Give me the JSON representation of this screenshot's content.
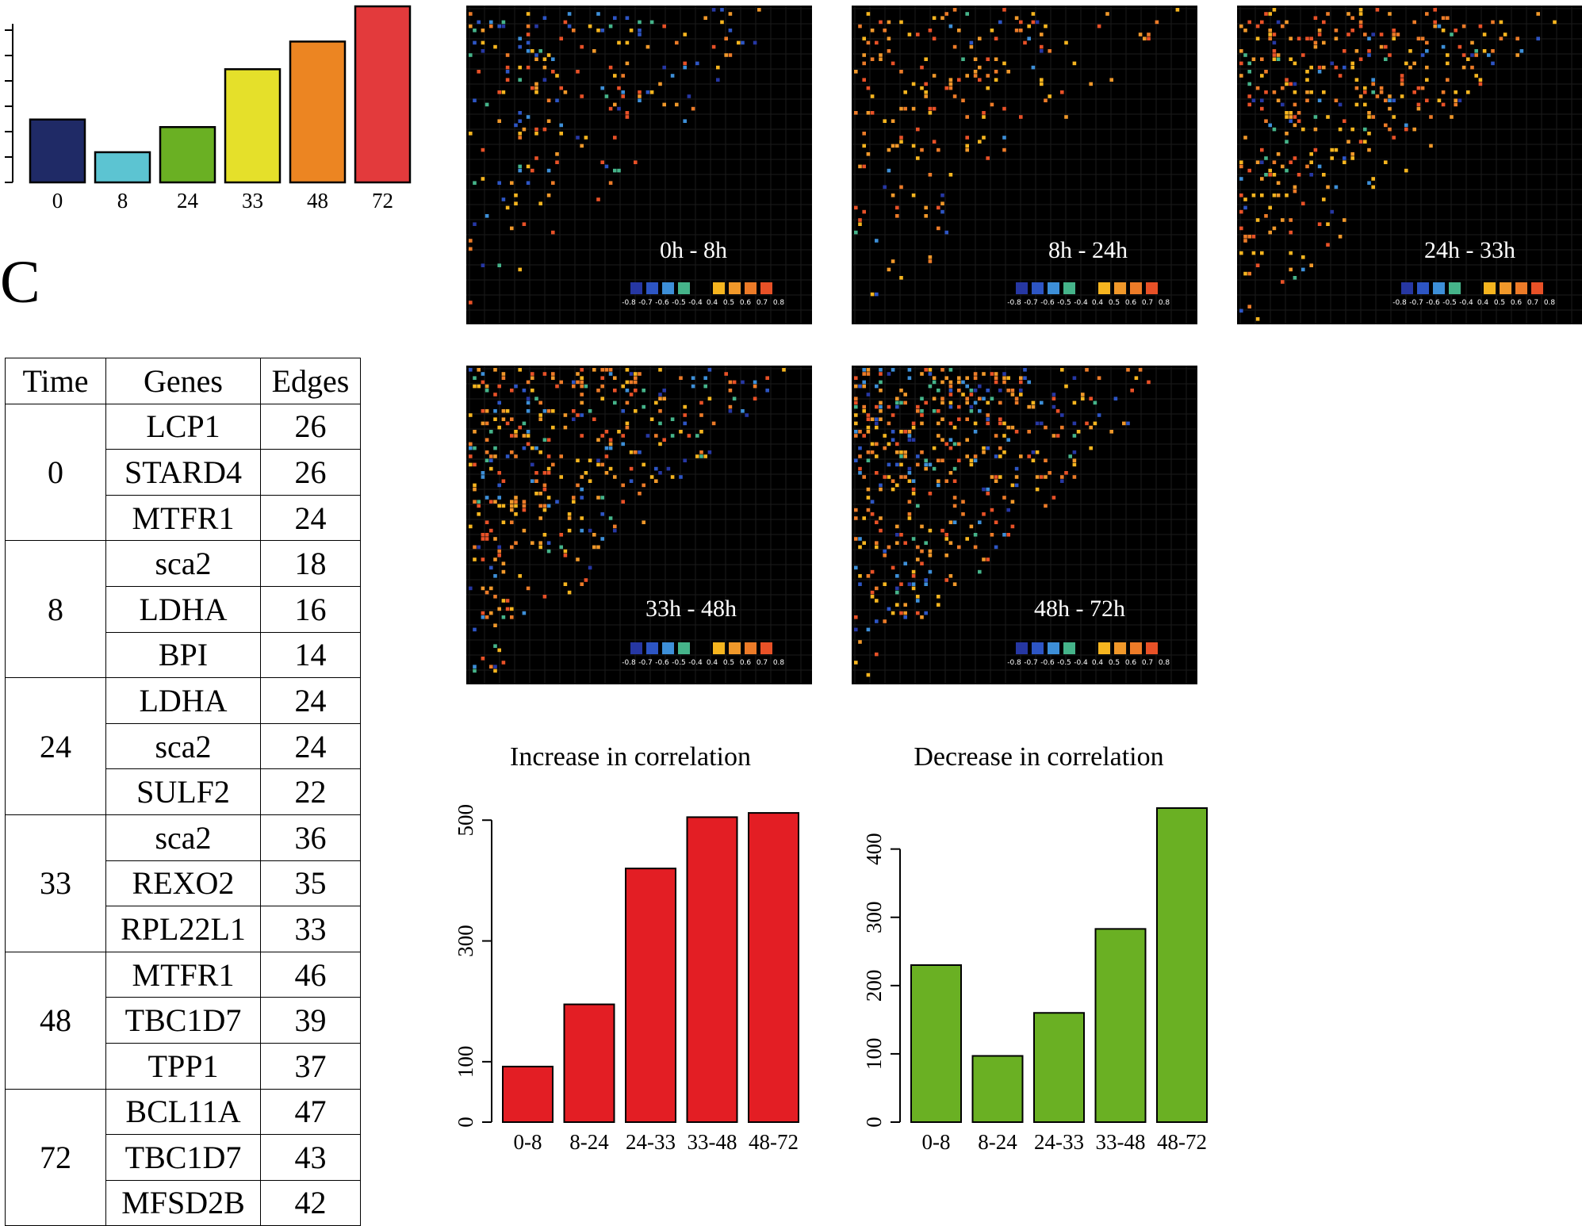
{
  "top_chart": {
    "type": "bar",
    "categories": [
      "0",
      "8",
      "24",
      "33",
      "48",
      "72"
    ],
    "values": [
      2.5,
      1.2,
      2.2,
      4.5,
      5.6,
      7.0
    ],
    "colors": [
      "#1f2a66",
      "#5cc4d2",
      "#6ab023",
      "#e5e02a",
      "#ec8522",
      "#e33a3c"
    ],
    "ylim": [
      0,
      7
    ]
  },
  "panel_letter": "C",
  "table": {
    "headers": [
      "Time",
      "Genes",
      "Edges"
    ],
    "groups": [
      {
        "time": "0",
        "rows": [
          {
            "gene": "LCP1",
            "edges": "26"
          },
          {
            "gene": "STARD4",
            "edges": "26"
          },
          {
            "gene": "MTFR1",
            "edges": "24"
          }
        ]
      },
      {
        "time": "8",
        "rows": [
          {
            "gene": "sca2",
            "edges": "18"
          },
          {
            "gene": "LDHA",
            "edges": "16"
          },
          {
            "gene": "BPI",
            "edges": "14"
          }
        ]
      },
      {
        "time": "24",
        "rows": [
          {
            "gene": "LDHA",
            "edges": "24"
          },
          {
            "gene": "sca2",
            "edges": "24"
          },
          {
            "gene": "SULF2",
            "edges": "22"
          }
        ]
      },
      {
        "time": "33",
        "rows": [
          {
            "gene": "sca2",
            "edges": "36"
          },
          {
            "gene": "REXO2",
            "edges": "35"
          },
          {
            "gene": "RPL22L1",
            "edges": "33"
          }
        ]
      },
      {
        "time": "48",
        "rows": [
          {
            "gene": "MTFR1",
            "edges": "46"
          },
          {
            "gene": "TBC1D7",
            "edges": "39"
          },
          {
            "gene": "TPP1",
            "edges": "37"
          }
        ]
      },
      {
        "time": "72",
        "rows": [
          {
            "gene": "BCL11A",
            "edges": "47"
          },
          {
            "gene": "TBC1D7",
            "edges": "43"
          },
          {
            "gene": "MFSD2B",
            "edges": "42"
          }
        ]
      }
    ]
  },
  "heatmaps": [
    {
      "label": "0h - 8h",
      "density": 0.35,
      "neg_share": 0.45
    },
    {
      "label": "8h - 24h",
      "density": 0.3,
      "neg_share": 0.12
    },
    {
      "label": "24h - 33h",
      "density": 0.7,
      "neg_share": 0.2
    },
    {
      "label": "33h - 48h",
      "density": 0.7,
      "neg_share": 0.25
    },
    {
      "label": "48h - 72h",
      "density": 0.85,
      "neg_share": 0.3
    }
  ],
  "heatmap_legend": {
    "ticks": [
      "-0.8",
      "-0.7",
      "-0.6",
      "-0.5",
      "-0.4",
      "0.4",
      "0.5",
      "0.6",
      "0.7",
      "0.8"
    ],
    "colors": [
      "#2637a3",
      "#2d55c4",
      "#3d8fd8",
      "#45b48a",
      "#f6b51f",
      "#f0982a",
      "#ec7b28",
      "#e85127"
    ]
  },
  "chart_data": [
    {
      "type": "bar",
      "title": "Increase in correlation",
      "categories": [
        "0-8",
        "8-24",
        "24-33",
        "33-48",
        "48-72"
      ],
      "values": [
        92,
        195,
        420,
        505,
        512
      ],
      "ylim": [
        0,
        520
      ],
      "yticks": [
        "0",
        "100",
        "300",
        "500"
      ],
      "color": "#e31e24"
    },
    {
      "type": "bar",
      "title": "Decrease in correlation",
      "categories": [
        "0-8",
        "8-24",
        "24-33",
        "33-48",
        "48-72"
      ],
      "values": [
        230,
        97,
        160,
        283,
        460
      ],
      "ylim": [
        0,
        460
      ],
      "yticks": [
        "0",
        "100",
        "200",
        "300",
        "400"
      ],
      "color": "#6ab023"
    }
  ]
}
